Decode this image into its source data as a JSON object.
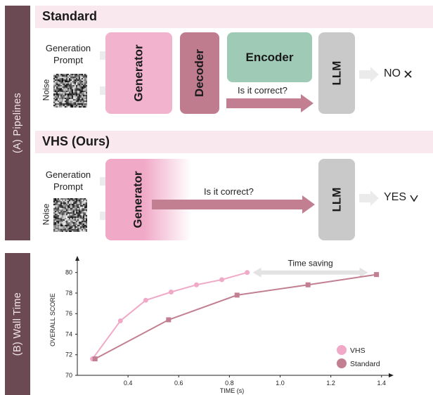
{
  "side_tabs": {
    "pipelines": "(A) Pipelines",
    "wall_time": "(B) Wall Time"
  },
  "standard": {
    "title": "Standard",
    "prompt_label": "Generation Prompt",
    "noise_label": "Noise",
    "generator": "Generator",
    "decoder": "Decoder",
    "encoder": "Encoder",
    "question": "Is it correct?",
    "llm": "LLM",
    "answer": "NO",
    "answer_icon": "x-icon"
  },
  "vhs": {
    "title": "VHS (Ours)",
    "prompt_label": "Generation Prompt",
    "noise_label": "Noise",
    "generator": "Generator",
    "question": "Is it correct?",
    "llm": "LLM",
    "answer": "YES",
    "answer_icon": "check-icon"
  },
  "colors": {
    "generator": "#f2b3ce",
    "decoder": "#c07c8f",
    "encoder": "#9fcab5",
    "llm": "#c9c9c9",
    "arrow_main": "#c27f92",
    "arrow_input": "#ebebeb",
    "vhs": "#f0a9c7",
    "standard": "#c27f92",
    "tab": "#6b4a54",
    "section_bar": "#f9e9ef"
  },
  "chart_data": {
    "type": "line",
    "xlabel": "TIME (s)",
    "ylabel": "OVERALL SCORE",
    "xlim": [
      0.2,
      1.42
    ],
    "ylim": [
      70,
      80.8
    ],
    "xticks": [
      0.4,
      0.6,
      0.8,
      1.0,
      1.2,
      1.4
    ],
    "yticks": [
      70,
      72,
      74,
      76,
      78,
      80
    ],
    "annotation": "Time saving",
    "legend_position": "bottom-right",
    "series": [
      {
        "name": "VHS",
        "marker": "circle",
        "color": "#f0a9c7",
        "x": [
          0.26,
          0.37,
          0.47,
          0.57,
          0.67,
          0.77,
          0.87
        ],
        "y": [
          71.6,
          75.3,
          77.3,
          78.1,
          78.8,
          79.3,
          80.0
        ]
      },
      {
        "name": "Standard",
        "marker": "square",
        "color": "#c27f92",
        "x": [
          0.27,
          0.56,
          0.83,
          1.11,
          1.38
        ],
        "y": [
          71.6,
          75.4,
          77.8,
          78.8,
          79.8
        ]
      }
    ]
  }
}
